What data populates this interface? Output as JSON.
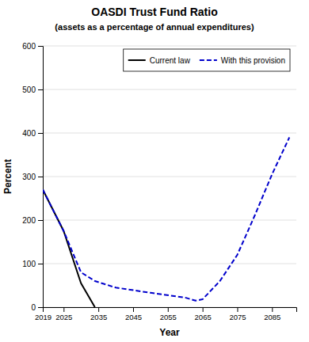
{
  "chart_data": {
    "type": "line",
    "title": "OASDI  Trust Fund Ratio",
    "subtitle": "(assets as a percentage of annual expenditures)",
    "xlabel": "Year",
    "ylabel": "Percent",
    "xlim": [
      2019,
      2092
    ],
    "ylim": [
      0,
      600
    ],
    "xticks": [
      2019,
      2025,
      2035,
      2045,
      2055,
      2065,
      2075,
      2085
    ],
    "yticks": [
      0,
      100,
      200,
      300,
      400,
      500,
      600
    ],
    "grid": "y",
    "legend": "top-right",
    "series": [
      {
        "name": "Current law",
        "color": "#000000",
        "line_style": "solid",
        "x": [
          2019,
          2025,
          2030,
          2034
        ],
        "values": [
          270,
          175,
          55,
          0
        ]
      },
      {
        "name": "With this provision",
        "color": "#0000cc",
        "line_style": "dashed",
        "x": [
          2019,
          2025,
          2030,
          2034,
          2040,
          2050,
          2060,
          2063,
          2065,
          2070,
          2075,
          2080,
          2085,
          2090
        ],
        "values": [
          270,
          175,
          80,
          60,
          45,
          33,
          22,
          15,
          18,
          60,
          120,
          210,
          305,
          390
        ]
      }
    ]
  }
}
